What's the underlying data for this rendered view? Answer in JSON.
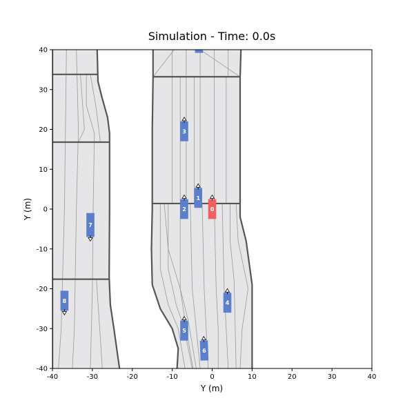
{
  "chart_data": {
    "type": "scatter",
    "title": "Simulation - Time: 0.0s",
    "xlabel": "Y (m)",
    "ylabel": "Y (m)",
    "xlim": [
      -40,
      40
    ],
    "ylim": [
      -40,
      40
    ],
    "xticks": [
      "-40",
      "-30",
      "-20",
      "-10",
      "0",
      "10",
      "20",
      "30",
      "40"
    ],
    "yticks": [
      "-40",
      "-30",
      "-20",
      "-10",
      "0",
      "10",
      "20",
      "30",
      "40"
    ],
    "grid": false,
    "colors": {
      "road": "#e6e6e8",
      "road_edge": "#555555",
      "lane_line": "#9a9a9a",
      "ego": "#f06060",
      "other": "#5b7fcc"
    },
    "roads": [
      {
        "name": "left-road",
        "left_edge": [
          [
            -40,
            40
          ],
          [
            -40,
            -40
          ]
        ],
        "right_edge": [
          [
            -28.8,
            40
          ],
          [
            -28.6,
            32
          ],
          [
            -27.6,
            28
          ],
          [
            -26.2,
            23
          ],
          [
            -25.7,
            19
          ],
          [
            -25.7,
            0
          ],
          [
            -25.8,
            -17
          ],
          [
            -25.5,
            -24
          ],
          [
            -24.6,
            -30
          ],
          [
            -23.2,
            -40
          ]
        ],
        "crossings": [
          {
            "y": 33.8,
            "x1": -40,
            "x2": -28.6
          },
          {
            "y": 16.8,
            "x1": -40,
            "x2": -25.7
          },
          {
            "y": -17.6,
            "x1": -40,
            "x2": -25.8
          }
        ]
      },
      {
        "name": "right-road",
        "left_edge": [
          [
            -14.8,
            40
          ],
          [
            -14.8,
            33
          ],
          [
            -15.0,
            20
          ],
          [
            -15.0,
            0
          ],
          [
            -15.2,
            -10
          ],
          [
            -15.0,
            -19
          ],
          [
            -13.0,
            -25
          ],
          [
            -10.0,
            -30
          ],
          [
            -8.5,
            -35
          ],
          [
            -8.8,
            -40
          ]
        ],
        "right_edge": [
          [
            7.2,
            40
          ],
          [
            7.0,
            33
          ],
          [
            7.0,
            1
          ],
          [
            7.0,
            -2
          ],
          [
            8.5,
            -8
          ],
          [
            10.0,
            -19
          ],
          [
            10.0,
            -40
          ]
        ],
        "crossings": [
          {
            "y": 33.2,
            "x1": -14.8,
            "x2": 7.0
          },
          {
            "y": 1.4,
            "x1": -15.0,
            "x2": 7.0
          }
        ]
      }
    ],
    "lane_lines": [
      [
        [
          -36.5,
          40
        ],
        [
          -37.0,
          0
        ],
        [
          -37.8,
          -30
        ],
        [
          -38.5,
          -40
        ]
      ],
      [
        [
          -34.0,
          40
        ],
        [
          -33.5,
          20
        ],
        [
          -34.0,
          0
        ],
        [
          -34.5,
          -30
        ],
        [
          -35.0,
          -40
        ]
      ],
      [
        [
          -31.5,
          34
        ],
        [
          -31.5,
          26
        ],
        [
          -29.5,
          19
        ],
        [
          -29.8,
          0
        ],
        [
          -30.0,
          -20
        ],
        [
          -30.5,
          -40
        ]
      ],
      [
        [
          -33.0,
          33.8
        ],
        [
          -32.0,
          20
        ],
        [
          -33.5,
          16.8
        ]
      ],
      [
        [
          -30.5,
          33.8
        ],
        [
          -29.0,
          25
        ],
        [
          -28.0,
          16.8
        ]
      ],
      [
        [
          -29.0,
          -17.6
        ],
        [
          -28.5,
          -25
        ],
        [
          -27.5,
          -40
        ]
      ],
      [
        [
          -10.0,
          40
        ],
        [
          -10.0,
          33.2
        ]
      ],
      [
        [
          -6.5,
          40
        ],
        [
          -6.5,
          33.2
        ]
      ],
      [
        [
          -3.0,
          40
        ],
        [
          -3.0,
          33.2
        ]
      ],
      [
        [
          0.5,
          40
        ],
        [
          0.5,
          33.2
        ]
      ],
      [
        [
          4.0,
          40
        ],
        [
          4.0,
          33.2
        ]
      ],
      [
        [
          -14.8,
          33.2
        ],
        [
          -9.5,
          40
        ]
      ],
      [
        [
          -3.0,
          40
        ],
        [
          7.0,
          33.2
        ]
      ],
      [
        [
          -10.0,
          33.2
        ],
        [
          -10.0,
          1.4
        ]
      ],
      [
        [
          -6.5,
          33.2
        ],
        [
          -6.5,
          1.4
        ]
      ],
      [
        [
          -3.0,
          33.2
        ],
        [
          -3.0,
          1.4
        ]
      ],
      [
        [
          0.5,
          33.2
        ],
        [
          0.5,
          1.4
        ]
      ],
      [
        [
          3.5,
          33.2
        ],
        [
          3.5,
          1.4
        ]
      ],
      [
        [
          -8.0,
          33.2
        ],
        [
          -8.0,
          1.4
        ]
      ],
      [
        [
          -4.5,
          33.2
        ],
        [
          -4.5,
          1.4
        ]
      ],
      [
        [
          -13.0,
          1.4
        ],
        [
          -13.0,
          -15
        ],
        [
          -11.0,
          -24
        ],
        [
          -8.5,
          -30
        ],
        [
          -6.8,
          -40
        ]
      ],
      [
        [
          -11.0,
          1.4
        ],
        [
          -11.0,
          -15
        ],
        [
          -9.0,
          -24
        ],
        [
          -7.0,
          -30
        ],
        [
          -5.0,
          -40
        ]
      ],
      [
        [
          -8.0,
          1.4
        ],
        [
          -8.0,
          -20
        ],
        [
          -6.5,
          -30
        ],
        [
          -4.8,
          -40
        ]
      ],
      [
        [
          -5.5,
          1.4
        ],
        [
          -5.0,
          -20
        ],
        [
          -4.0,
          -30
        ],
        [
          -3.0,
          -40
        ]
      ],
      [
        [
          -2.5,
          1.4
        ],
        [
          -2.0,
          -20
        ],
        [
          -1.5,
          -30
        ],
        [
          -1.0,
          -40
        ]
      ],
      [
        [
          0.5,
          1.4
        ],
        [
          1.0,
          -20
        ],
        [
          1.5,
          -30
        ],
        [
          1.5,
          -40
        ]
      ],
      [
        [
          2.5,
          1.4
        ],
        [
          3.0,
          -20
        ],
        [
          3.5,
          -30
        ],
        [
          4.0,
          -40
        ]
      ],
      [
        [
          4.5,
          1.4
        ],
        [
          4.5,
          -8
        ],
        [
          5.5,
          -18
        ],
        [
          6.0,
          -40
        ]
      ],
      [
        [
          6.0,
          1.4
        ],
        [
          6.5,
          -8
        ],
        [
          9.0,
          -20
        ],
        [
          7.5,
          -30
        ],
        [
          7.0,
          -40
        ]
      ],
      [
        [
          -12.0,
          1.4
        ],
        [
          -11.0,
          -10
        ],
        [
          -8.0,
          -20
        ],
        [
          -6.0,
          -28
        ],
        [
          -4.0,
          -40
        ]
      ]
    ],
    "vehicles": [
      {
        "id": "0",
        "x": 0.0,
        "y": 0.0,
        "length": 5.0,
        "width": 2.0,
        "heading_deg": 90,
        "ego": true
      },
      {
        "id": "1",
        "x": -3.5,
        "y": 2.8,
        "length": 5.0,
        "width": 2.0,
        "heading_deg": 90,
        "ego": false
      },
      {
        "id": "2",
        "x": -7.0,
        "y": 0.0,
        "length": 5.0,
        "width": 2.0,
        "heading_deg": 90,
        "ego": false
      },
      {
        "id": "3",
        "x": -7.0,
        "y": 19.5,
        "length": 5.0,
        "width": 2.0,
        "heading_deg": 90,
        "ego": false
      },
      {
        "id": "4",
        "x": 3.8,
        "y": -23.5,
        "length": 5.0,
        "width": 2.0,
        "heading_deg": 90,
        "ego": false
      },
      {
        "id": "5",
        "x": -7.0,
        "y": -30.5,
        "length": 5.0,
        "width": 2.0,
        "heading_deg": 90,
        "ego": false
      },
      {
        "id": "6",
        "x": -2.0,
        "y": -35.5,
        "length": 5.0,
        "width": 2.0,
        "heading_deg": 92,
        "ego": false
      },
      {
        "id": "7",
        "x": -30.5,
        "y": -4.0,
        "length": 6.0,
        "width": 2.0,
        "heading_deg": 270,
        "ego": false
      },
      {
        "id": "8",
        "x": -37.0,
        "y": -23.0,
        "length": 5.0,
        "width": 2.0,
        "heading_deg": 270,
        "ego": false
      },
      {
        "id": "",
        "x": -3.3,
        "y": 40.0,
        "length": 1.6,
        "width": 2.0,
        "heading_deg": 90,
        "ego": false
      }
    ]
  }
}
